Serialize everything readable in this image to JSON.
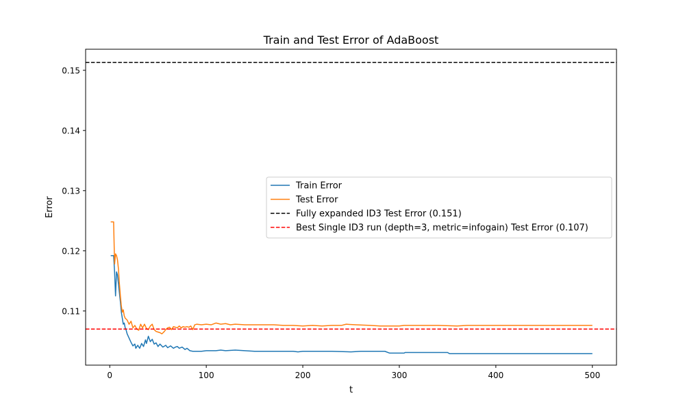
{
  "chart_data": {
    "type": "line",
    "title": "Train and Test Error of AdaBoost",
    "xlabel": "t",
    "ylabel": "Error",
    "xlim": [
      -25,
      525
    ],
    "ylim": [
      0.101,
      0.1535
    ],
    "x_ticks": [
      0,
      100,
      200,
      300,
      400,
      500
    ],
    "x_tick_labels": [
      "0",
      "100",
      "200",
      "300",
      "400",
      "500"
    ],
    "y_ticks": [
      0.11,
      0.12,
      0.13,
      0.14,
      0.15
    ],
    "y_tick_labels": [
      "0.11",
      "0.12",
      "0.13",
      "0.14",
      "0.15"
    ],
    "grid": false,
    "legend_position": "center-right",
    "series": [
      {
        "name": "Train Error",
        "color": "#1f77b4",
        "style": "solid",
        "points": [
          [
            1,
            0.1192
          ],
          [
            4,
            0.1192
          ],
          [
            5,
            0.1165
          ],
          [
            6,
            0.1125
          ],
          [
            7,
            0.1165
          ],
          [
            8,
            0.116
          ],
          [
            9,
            0.1145
          ],
          [
            10,
            0.113
          ],
          [
            11,
            0.1115
          ],
          [
            12,
            0.1098
          ],
          [
            13,
            0.1088
          ],
          [
            14,
            0.1078
          ],
          [
            15,
            0.108
          ],
          [
            16,
            0.1072
          ],
          [
            17,
            0.1068
          ],
          [
            18,
            0.1062
          ],
          [
            20,
            0.1055
          ],
          [
            22,
            0.1048
          ],
          [
            24,
            0.1042
          ],
          [
            26,
            0.1045
          ],
          [
            27,
            0.1038
          ],
          [
            29,
            0.1043
          ],
          [
            31,
            0.1038
          ],
          [
            33,
            0.1046
          ],
          [
            35,
            0.1041
          ],
          [
            37,
            0.1052
          ],
          [
            38,
            0.1046
          ],
          [
            40,
            0.1058
          ],
          [
            42,
            0.1049
          ],
          [
            44,
            0.1053
          ],
          [
            46,
            0.1045
          ],
          [
            48,
            0.1047
          ],
          [
            50,
            0.1041
          ],
          [
            52,
            0.1045
          ],
          [
            55,
            0.104
          ],
          [
            58,
            0.1043
          ],
          [
            60,
            0.1039
          ],
          [
            63,
            0.1042
          ],
          [
            66,
            0.1038
          ],
          [
            68,
            0.104
          ],
          [
            70,
            0.1041
          ],
          [
            72,
            0.1038
          ],
          [
            75,
            0.104
          ],
          [
            78,
            0.1036
          ],
          [
            80,
            0.1038
          ],
          [
            83,
            0.1034
          ],
          [
            86,
            0.1033
          ],
          [
            90,
            0.1033
          ],
          [
            95,
            0.1033
          ],
          [
            100,
            0.1034
          ],
          [
            110,
            0.1034
          ],
          [
            115,
            0.1035
          ],
          [
            120,
            0.1034
          ],
          [
            130,
            0.1035
          ],
          [
            140,
            0.1034
          ],
          [
            150,
            0.1033
          ],
          [
            170,
            0.1033
          ],
          [
            190,
            0.1033
          ],
          [
            195,
            0.1032
          ],
          [
            200,
            0.1033
          ],
          [
            230,
            0.1033
          ],
          [
            250,
            0.1032
          ],
          [
            260,
            0.1033
          ],
          [
            285,
            0.1033
          ],
          [
            290,
            0.103
          ],
          [
            305,
            0.103
          ],
          [
            306,
            0.1031
          ],
          [
            350,
            0.1031
          ],
          [
            352,
            0.1029
          ],
          [
            380,
            0.1029
          ],
          [
            450,
            0.1029
          ],
          [
            500,
            0.1029
          ]
        ]
      },
      {
        "name": "Test Error",
        "color": "#ff7f0e",
        "style": "solid",
        "points": [
          [
            1,
            0.1248
          ],
          [
            4,
            0.1248
          ],
          [
            5,
            0.1178
          ],
          [
            6,
            0.1195
          ],
          [
            7,
            0.1192
          ],
          [
            8,
            0.1185
          ],
          [
            9,
            0.117
          ],
          [
            10,
            0.1145
          ],
          [
            11,
            0.1125
          ],
          [
            12,
            0.1108
          ],
          [
            13,
            0.1098
          ],
          [
            14,
            0.1102
          ],
          [
            15,
            0.1092
          ],
          [
            16,
            0.1088
          ],
          [
            18,
            0.1085
          ],
          [
            20,
            0.1078
          ],
          [
            22,
            0.1083
          ],
          [
            24,
            0.1072
          ],
          [
            26,
            0.1076
          ],
          [
            28,
            0.107
          ],
          [
            30,
            0.1068
          ],
          [
            32,
            0.1078
          ],
          [
            34,
            0.1072
          ],
          [
            36,
            0.1078
          ],
          [
            38,
            0.1071
          ],
          [
            40,
            0.1069
          ],
          [
            42,
            0.1075
          ],
          [
            44,
            0.1078
          ],
          [
            46,
            0.1069
          ],
          [
            48,
            0.1066
          ],
          [
            50,
            0.1065
          ],
          [
            52,
            0.1064
          ],
          [
            54,
            0.1062
          ],
          [
            56,
            0.1065
          ],
          [
            58,
            0.1069
          ],
          [
            60,
            0.1072
          ],
          [
            62,
            0.1073
          ],
          [
            64,
            0.1069
          ],
          [
            66,
            0.1074
          ],
          [
            68,
            0.1073
          ],
          [
            70,
            0.1072
          ],
          [
            72,
            0.1075
          ],
          [
            74,
            0.1072
          ],
          [
            76,
            0.1074
          ],
          [
            78,
            0.1073
          ],
          [
            80,
            0.1074
          ],
          [
            82,
            0.1073
          ],
          [
            84,
            0.1075
          ],
          [
            86,
            0.1069
          ],
          [
            88,
            0.1077
          ],
          [
            90,
            0.1078
          ],
          [
            95,
            0.1077
          ],
          [
            100,
            0.1078
          ],
          [
            105,
            0.1077
          ],
          [
            110,
            0.108
          ],
          [
            115,
            0.1078
          ],
          [
            120,
            0.1079
          ],
          [
            125,
            0.1077
          ],
          [
            130,
            0.1078
          ],
          [
            140,
            0.1077
          ],
          [
            150,
            0.1077
          ],
          [
            160,
            0.1077
          ],
          [
            170,
            0.1077
          ],
          [
            180,
            0.1076
          ],
          [
            190,
            0.1076
          ],
          [
            200,
            0.1075
          ],
          [
            210,
            0.1076
          ],
          [
            220,
            0.1075
          ],
          [
            230,
            0.1076
          ],
          [
            240,
            0.1076
          ],
          [
            245,
            0.1078
          ],
          [
            255,
            0.1077
          ],
          [
            270,
            0.1076
          ],
          [
            280,
            0.1075
          ],
          [
            290,
            0.1075
          ],
          [
            300,
            0.1075
          ],
          [
            305,
            0.1076
          ],
          [
            320,
            0.1076
          ],
          [
            340,
            0.1076
          ],
          [
            360,
            0.1075
          ],
          [
            370,
            0.1076
          ],
          [
            420,
            0.1076
          ],
          [
            500,
            0.1076
          ]
        ]
      },
      {
        "name": "Fully expanded ID3 Test Error (0.151)",
        "color": "#000000",
        "style": "dashed",
        "hline": 0.1513
      },
      {
        "name": "Best Single ID3 run (depth=3, metric=infogain) Test Error (0.107)",
        "color": "#ff0000",
        "style": "dashed",
        "hline": 0.107
      }
    ]
  }
}
